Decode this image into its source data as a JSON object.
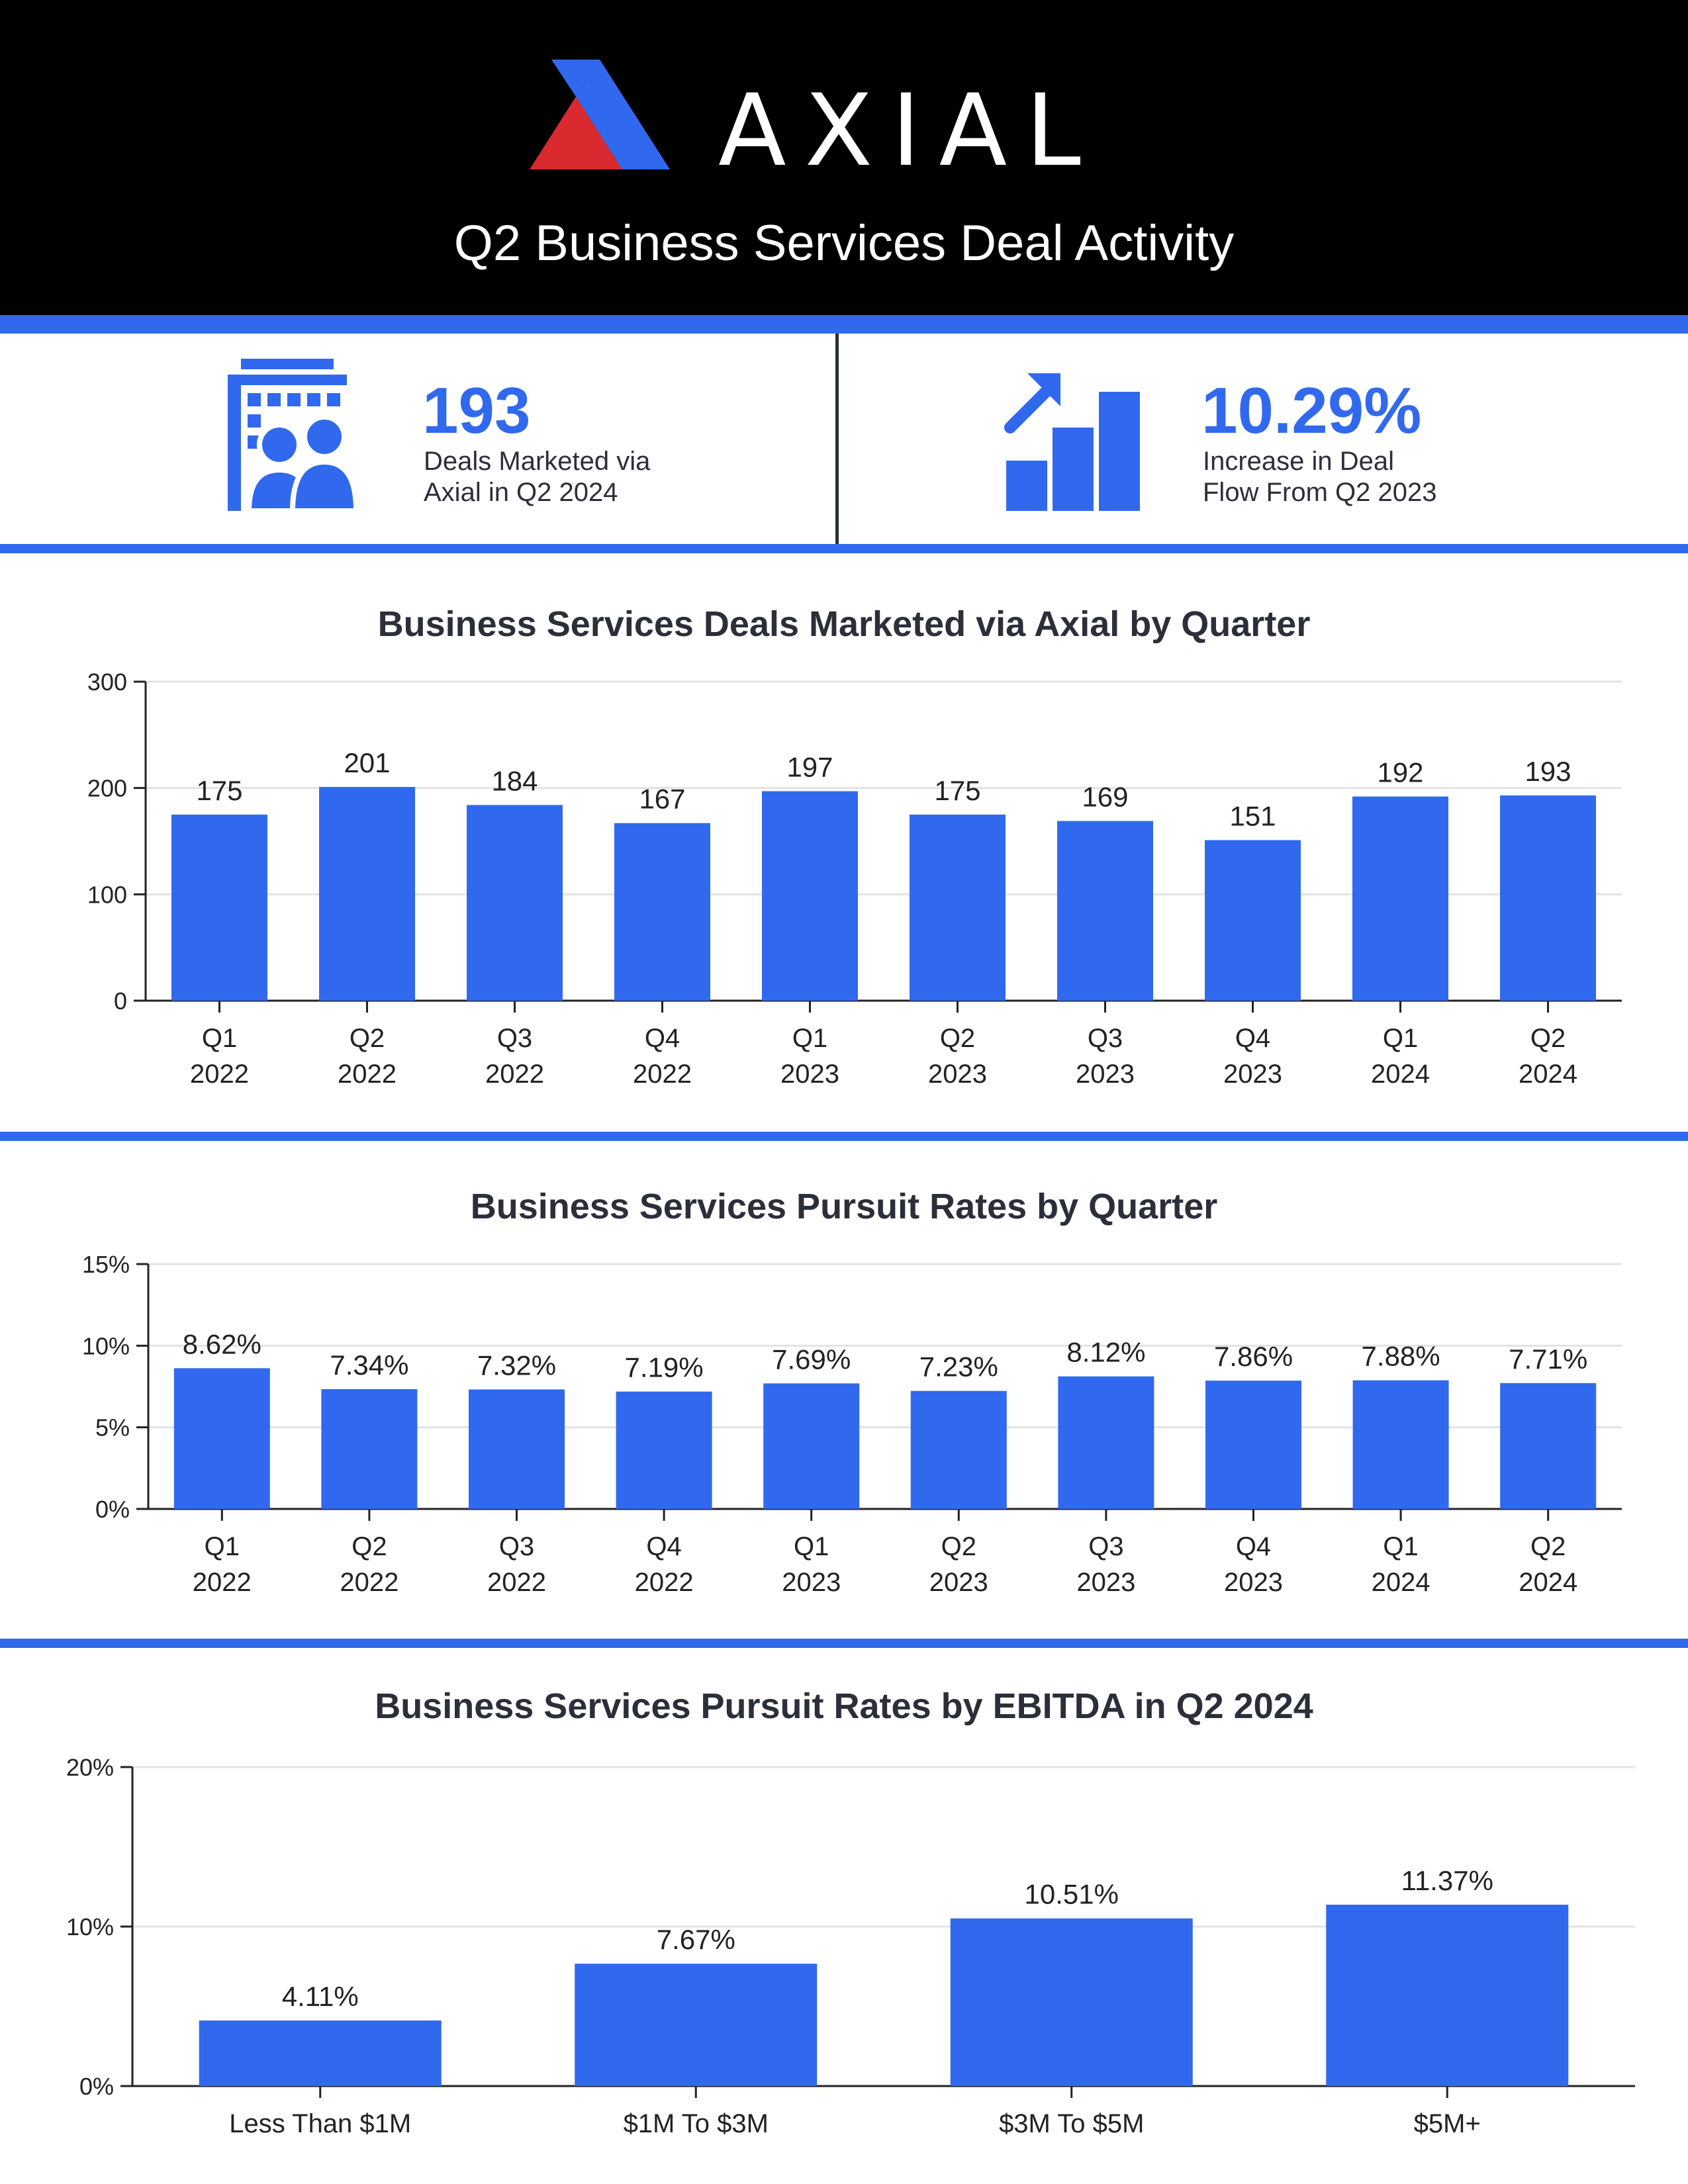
{
  "header": {
    "brand": "AXIAL",
    "title": "Q2 Business Services Deal Activity"
  },
  "stats": [
    {
      "icon": "building-people-icon",
      "value": "193",
      "label_line1": "Deals Marketed via",
      "label_line2": "Axial in Q2 2024"
    },
    {
      "icon": "growth-bars-arrow-icon",
      "value": "10.29%",
      "label_line1": "Increase in Deal",
      "label_line2": "Flow From Q2 2023"
    }
  ],
  "colors": {
    "accent": "#3169ee",
    "logo_red": "#d82a2f",
    "text": "#2b2f3a",
    "header_bg": "#000000"
  },
  "chart_data": [
    {
      "type": "bar",
      "title": "Business Services Deals Marketed via Axial by Quarter",
      "categories": [
        [
          "Q1",
          "2022"
        ],
        [
          "Q2",
          "2022"
        ],
        [
          "Q3",
          "2022"
        ],
        [
          "Q4",
          "2022"
        ],
        [
          "Q1",
          "2023"
        ],
        [
          "Q2",
          "2023"
        ],
        [
          "Q3",
          "2023"
        ],
        [
          "Q4",
          "2023"
        ],
        [
          "Q1",
          "2024"
        ],
        [
          "Q2",
          "2024"
        ]
      ],
      "values": [
        175,
        201,
        184,
        167,
        197,
        175,
        169,
        151,
        192,
        193
      ],
      "labels": [
        "175",
        "201",
        "184",
        "167",
        "197",
        "175",
        "169",
        "151",
        "192",
        "193"
      ],
      "ylim": [
        0,
        300
      ],
      "yticks": [
        0,
        100,
        200,
        300
      ],
      "ytick_labels": [
        "0",
        "100",
        "200",
        "300"
      ],
      "grid": true
    },
    {
      "type": "bar",
      "title": "Business Services Pursuit Rates by Quarter",
      "categories": [
        [
          "Q1",
          "2022"
        ],
        [
          "Q2",
          "2022"
        ],
        [
          "Q3",
          "2022"
        ],
        [
          "Q4",
          "2022"
        ],
        [
          "Q1",
          "2023"
        ],
        [
          "Q2",
          "2023"
        ],
        [
          "Q3",
          "2023"
        ],
        [
          "Q4",
          "2023"
        ],
        [
          "Q1",
          "2024"
        ],
        [
          "Q2",
          "2024"
        ]
      ],
      "values": [
        8.62,
        7.34,
        7.32,
        7.19,
        7.69,
        7.23,
        8.12,
        7.86,
        7.88,
        7.71
      ],
      "labels": [
        "8.62%",
        "7.34%",
        "7.32%",
        "7.19%",
        "7.69%",
        "7.23%",
        "8.12%",
        "7.86%",
        "7.88%",
        "7.71%"
      ],
      "ylim": [
        0,
        15
      ],
      "yticks": [
        0,
        5,
        10,
        15
      ],
      "ytick_labels": [
        "0%",
        "5%",
        "10%",
        "15%"
      ],
      "grid": true
    },
    {
      "type": "bar",
      "title": "Business Services Pursuit Rates by EBITDA in Q2 2024",
      "categories": [
        [
          "Less Than $1M"
        ],
        [
          "$1M To $3M"
        ],
        [
          "$3M To $5M"
        ],
        [
          "$5M+"
        ]
      ],
      "values": [
        4.11,
        7.67,
        10.51,
        11.37
      ],
      "labels": [
        "4.11%",
        "7.67%",
        "10.51%",
        "11.37%"
      ],
      "ylim": [
        0,
        20
      ],
      "yticks": [
        0,
        10,
        20
      ],
      "ytick_labels": [
        "0%",
        "10%",
        "20%"
      ],
      "grid": true
    }
  ]
}
